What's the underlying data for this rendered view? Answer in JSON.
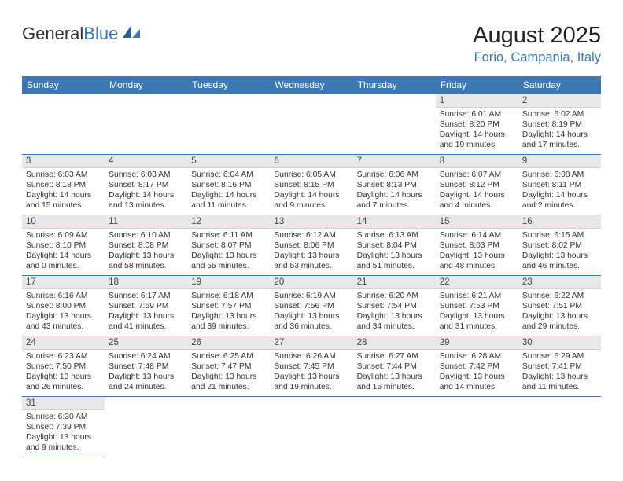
{
  "brand": {
    "word1": "General",
    "word2": "Blue",
    "color_primary": "#3c78b4"
  },
  "title": "August 2025",
  "location": "Forio, Campania, Italy",
  "weekdays": [
    "Sunday",
    "Monday",
    "Tuesday",
    "Wednesday",
    "Thursday",
    "Friday",
    "Saturday"
  ],
  "colors": {
    "header_bg": "#3c78b4",
    "header_text": "#ffffff",
    "daynum_bg": "#e8e8e8",
    "row_border": "#3c78b4",
    "text": "#333333"
  },
  "layout": {
    "first_weekday_index": 5,
    "num_days": 31,
    "cols": 7
  },
  "days": [
    {
      "n": 1,
      "sunrise": "6:01 AM",
      "sunset": "8:20 PM",
      "dl_h": 14,
      "dl_m": 19
    },
    {
      "n": 2,
      "sunrise": "6:02 AM",
      "sunset": "8:19 PM",
      "dl_h": 14,
      "dl_m": 17
    },
    {
      "n": 3,
      "sunrise": "6:03 AM",
      "sunset": "8:18 PM",
      "dl_h": 14,
      "dl_m": 15
    },
    {
      "n": 4,
      "sunrise": "6:03 AM",
      "sunset": "8:17 PM",
      "dl_h": 14,
      "dl_m": 13
    },
    {
      "n": 5,
      "sunrise": "6:04 AM",
      "sunset": "8:16 PM",
      "dl_h": 14,
      "dl_m": 11
    },
    {
      "n": 6,
      "sunrise": "6:05 AM",
      "sunset": "8:15 PM",
      "dl_h": 14,
      "dl_m": 9
    },
    {
      "n": 7,
      "sunrise": "6:06 AM",
      "sunset": "8:13 PM",
      "dl_h": 14,
      "dl_m": 7
    },
    {
      "n": 8,
      "sunrise": "6:07 AM",
      "sunset": "8:12 PM",
      "dl_h": 14,
      "dl_m": 4
    },
    {
      "n": 9,
      "sunrise": "6:08 AM",
      "sunset": "8:11 PM",
      "dl_h": 14,
      "dl_m": 2
    },
    {
      "n": 10,
      "sunrise": "6:09 AM",
      "sunset": "8:10 PM",
      "dl_h": 14,
      "dl_m": 0
    },
    {
      "n": 11,
      "sunrise": "6:10 AM",
      "sunset": "8:08 PM",
      "dl_h": 13,
      "dl_m": 58
    },
    {
      "n": 12,
      "sunrise": "6:11 AM",
      "sunset": "8:07 PM",
      "dl_h": 13,
      "dl_m": 55
    },
    {
      "n": 13,
      "sunrise": "6:12 AM",
      "sunset": "8:06 PM",
      "dl_h": 13,
      "dl_m": 53
    },
    {
      "n": 14,
      "sunrise": "6:13 AM",
      "sunset": "8:04 PM",
      "dl_h": 13,
      "dl_m": 51
    },
    {
      "n": 15,
      "sunrise": "6:14 AM",
      "sunset": "8:03 PM",
      "dl_h": 13,
      "dl_m": 48
    },
    {
      "n": 16,
      "sunrise": "6:15 AM",
      "sunset": "8:02 PM",
      "dl_h": 13,
      "dl_m": 46
    },
    {
      "n": 17,
      "sunrise": "6:16 AM",
      "sunset": "8:00 PM",
      "dl_h": 13,
      "dl_m": 43
    },
    {
      "n": 18,
      "sunrise": "6:17 AM",
      "sunset": "7:59 PM",
      "dl_h": 13,
      "dl_m": 41
    },
    {
      "n": 19,
      "sunrise": "6:18 AM",
      "sunset": "7:57 PM",
      "dl_h": 13,
      "dl_m": 39
    },
    {
      "n": 20,
      "sunrise": "6:19 AM",
      "sunset": "7:56 PM",
      "dl_h": 13,
      "dl_m": 36
    },
    {
      "n": 21,
      "sunrise": "6:20 AM",
      "sunset": "7:54 PM",
      "dl_h": 13,
      "dl_m": 34
    },
    {
      "n": 22,
      "sunrise": "6:21 AM",
      "sunset": "7:53 PM",
      "dl_h": 13,
      "dl_m": 31
    },
    {
      "n": 23,
      "sunrise": "6:22 AM",
      "sunset": "7:51 PM",
      "dl_h": 13,
      "dl_m": 29
    },
    {
      "n": 24,
      "sunrise": "6:23 AM",
      "sunset": "7:50 PM",
      "dl_h": 13,
      "dl_m": 26
    },
    {
      "n": 25,
      "sunrise": "6:24 AM",
      "sunset": "7:48 PM",
      "dl_h": 13,
      "dl_m": 24
    },
    {
      "n": 26,
      "sunrise": "6:25 AM",
      "sunset": "7:47 PM",
      "dl_h": 13,
      "dl_m": 21
    },
    {
      "n": 27,
      "sunrise": "6:26 AM",
      "sunset": "7:45 PM",
      "dl_h": 13,
      "dl_m": 19
    },
    {
      "n": 28,
      "sunrise": "6:27 AM",
      "sunset": "7:44 PM",
      "dl_h": 13,
      "dl_m": 16
    },
    {
      "n": 29,
      "sunrise": "6:28 AM",
      "sunset": "7:42 PM",
      "dl_h": 13,
      "dl_m": 14
    },
    {
      "n": 30,
      "sunrise": "6:29 AM",
      "sunset": "7:41 PM",
      "dl_h": 13,
      "dl_m": 11
    },
    {
      "n": 31,
      "sunrise": "6:30 AM",
      "sunset": "7:39 PM",
      "dl_h": 13,
      "dl_m": 9
    }
  ],
  "labels": {
    "sunrise": "Sunrise:",
    "sunset": "Sunset:",
    "daylight": "Daylight:",
    "hours_word": "hours",
    "and_word": "and",
    "minutes_word": "minutes."
  }
}
